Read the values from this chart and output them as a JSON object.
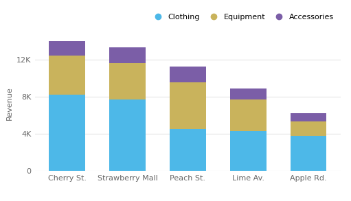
{
  "categories": [
    "Cherry St.",
    "Strawberry Mall",
    "Peach St.",
    "Lime Av.",
    "Apple Rd."
  ],
  "clothing": [
    8200,
    7700,
    4500,
    4300,
    3800
  ],
  "equipment": [
    4200,
    3900,
    5000,
    3400,
    1500
  ],
  "accessories": [
    1600,
    1700,
    1700,
    1200,
    900
  ],
  "colors": {
    "clothing": "#4db8e8",
    "equipment": "#c9b35c",
    "accessories": "#7b5ea7"
  },
  "legend_labels": [
    "Clothing",
    "Equipment",
    "Accessories"
  ],
  "ylabel": "Revenue",
  "ylim": [
    0,
    14500
  ],
  "yticks": [
    0,
    4000,
    8000,
    12000
  ],
  "ytick_labels": [
    "0",
    "4K",
    "8K",
    "12K"
  ],
  "background_color": "#ffffff",
  "grid_color": "#e5e5e5",
  "bar_width": 0.6
}
